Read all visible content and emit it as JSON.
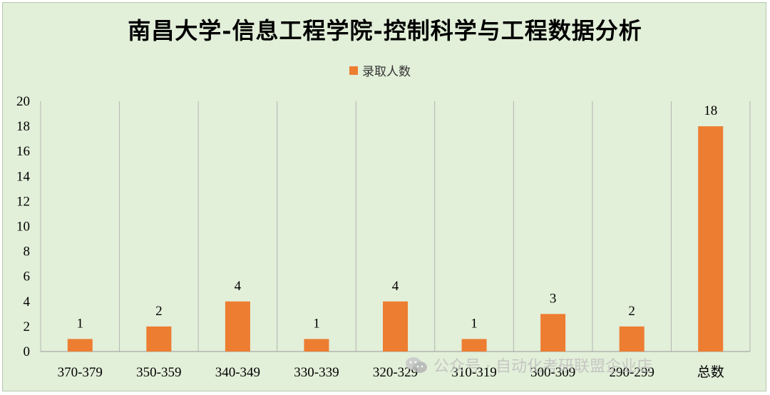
{
  "title": "南昌大学-信息工程学院-控制科学与工程数据分析",
  "legend": "录取人数",
  "watermark": "公众号 · 自动化考研联盟企业店",
  "colors": {
    "bar": "#ed7d31",
    "background": "#e2efd9",
    "grid": "#b4b4b4"
  },
  "chart_data": {
    "type": "bar",
    "title": "南昌大学-信息工程学院-控制科学与工程数据分析",
    "categories": [
      "370-379",
      "350-359",
      "340-349",
      "330-339",
      "320-329",
      "310-319",
      "300-309",
      "290-299",
      "总数"
    ],
    "series": [
      {
        "name": "录取人数",
        "values": [
          1,
          2,
          4,
          1,
          4,
          1,
          3,
          2,
          18
        ]
      }
    ],
    "ylim": [
      0,
      20
    ],
    "yticks": [
      0,
      2,
      4,
      6,
      8,
      10,
      12,
      14,
      16,
      18,
      20
    ],
    "xlabel": "",
    "ylabel": "",
    "legend_position": "top-center",
    "grid": "vertical category separators",
    "data_labels": true
  }
}
